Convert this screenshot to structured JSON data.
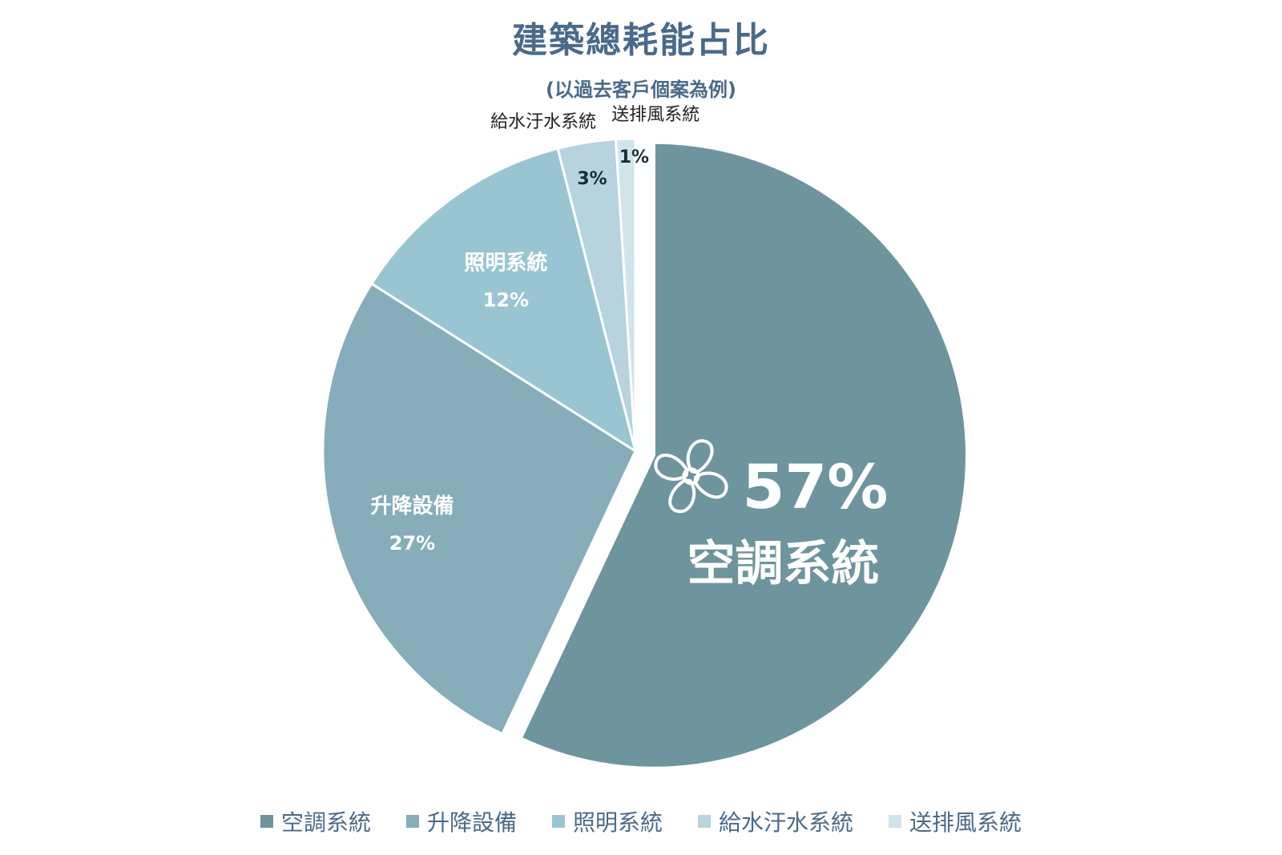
{
  "chart_data": {
    "type": "pie",
    "title": "建築總耗能占比",
    "subtitle": "(以過去客戶個案為例)",
    "categories": [
      "空調系統",
      "升降設備",
      "照明系統",
      "給水汙水系統",
      "送排風系統"
    ],
    "values": [
      57,
      27,
      12,
      3,
      1
    ],
    "value_labels": [
      "57%",
      "27%",
      "12%",
      "3%",
      "1%"
    ],
    "colors": [
      "#6e949e",
      "#86adb9",
      "#99c5d3",
      "#b6d3de",
      "#d2e4eb"
    ],
    "exploded_slice": "空調系統",
    "highlight_icon": "fan-icon",
    "legend_position": "bottom"
  }
}
